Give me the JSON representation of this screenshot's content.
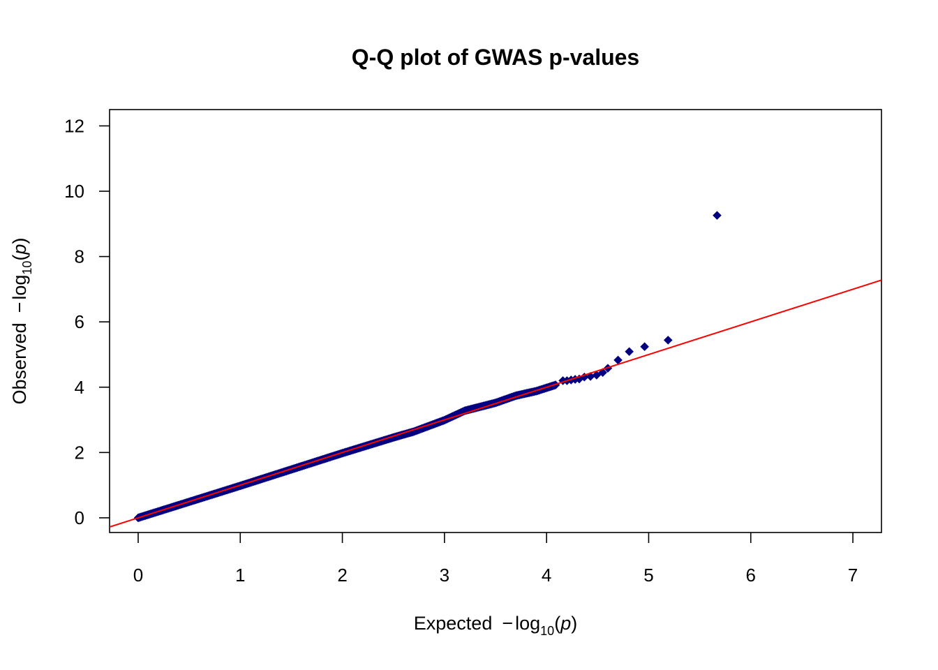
{
  "chart_data": {
    "type": "scatter",
    "title": "Q-Q plot of GWAS p-values",
    "xlabel": {
      "prefix": "Expected",
      "minus": "−",
      "log": "log",
      "base": "10",
      "var": "p"
    },
    "ylabel": {
      "prefix": "Observed",
      "minus": "−",
      "log": "log",
      "base": "10",
      "var": "p"
    },
    "xlim": [
      -0.28,
      7.28
    ],
    "ylim": [
      -0.45,
      12.5
    ],
    "xticks": [
      0,
      1,
      2,
      3,
      4,
      5,
      6,
      7
    ],
    "yticks": [
      0,
      2,
      4,
      6,
      8,
      10,
      12
    ],
    "grid": false,
    "point_color": "#000080",
    "line_color": "#ff0000",
    "reference_line": {
      "slope": 1,
      "intercept": 0
    },
    "band": [
      [
        0.0,
        0.0
      ],
      [
        0.5,
        0.49
      ],
      [
        1.0,
        0.98
      ],
      [
        1.5,
        1.48
      ],
      [
        2.0,
        1.98
      ],
      [
        2.5,
        2.46
      ],
      [
        2.7,
        2.64
      ],
      [
        3.0,
        2.99
      ],
      [
        3.2,
        3.28
      ],
      [
        3.5,
        3.52
      ],
      [
        3.7,
        3.74
      ],
      [
        3.9,
        3.88
      ],
      [
        4.1,
        4.08
      ]
    ],
    "tail_points": [
      [
        4.16,
        4.2
      ],
      [
        4.2,
        4.2
      ],
      [
        4.24,
        4.22
      ],
      [
        4.28,
        4.24
      ],
      [
        4.32,
        4.25
      ],
      [
        4.37,
        4.31
      ],
      [
        4.43,
        4.33
      ],
      [
        4.49,
        4.37
      ],
      [
        4.55,
        4.45
      ],
      [
        4.6,
        4.58
      ],
      [
        4.7,
        4.83
      ],
      [
        4.81,
        5.09
      ],
      [
        4.96,
        5.24
      ],
      [
        5.19,
        5.44
      ],
      [
        5.67,
        9.26
      ]
    ]
  }
}
